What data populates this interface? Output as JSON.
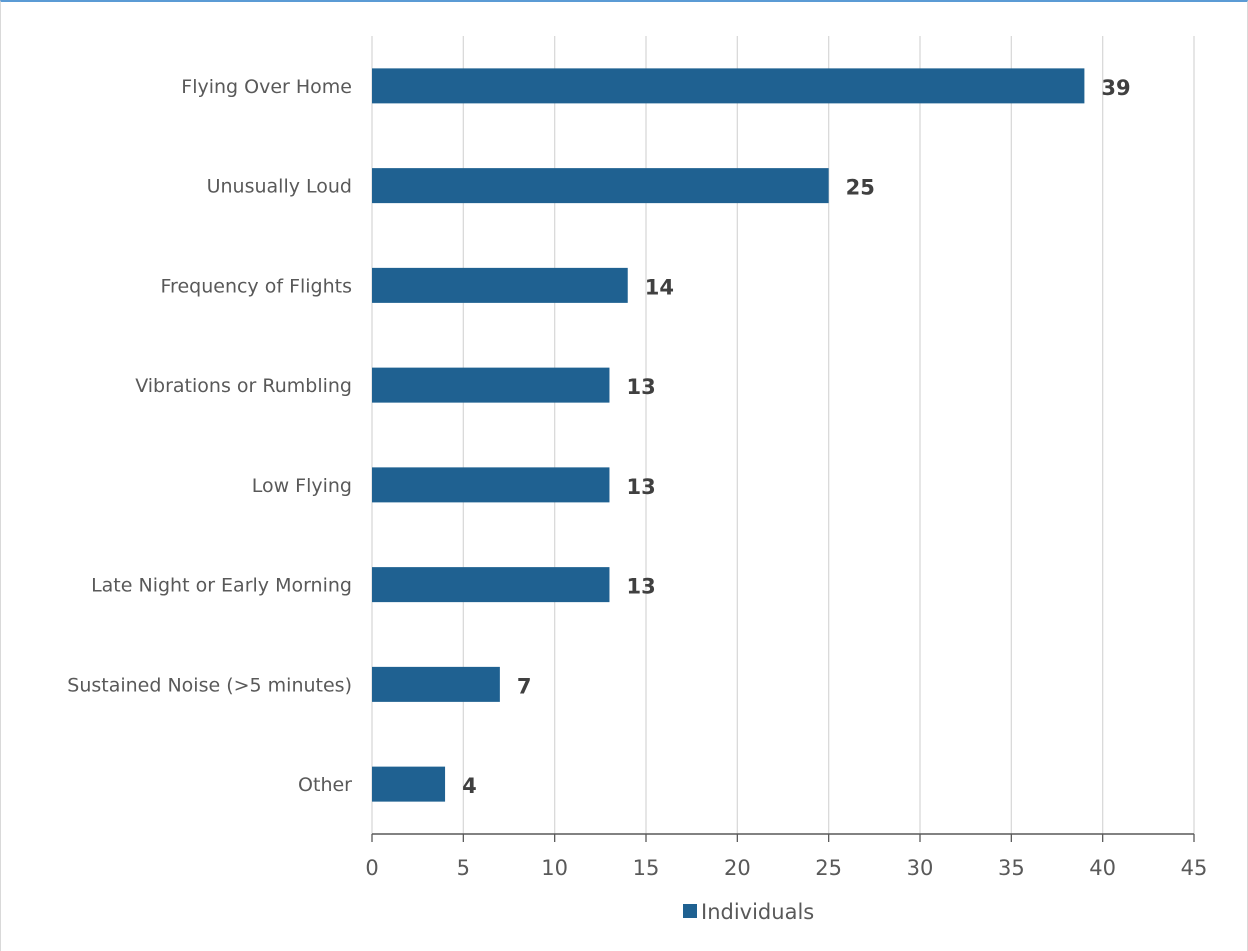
{
  "chart_data": {
    "type": "bar",
    "orientation": "horizontal",
    "categories": [
      "Flying Over Home",
      "Unusually Loud",
      "Frequency of Flights",
      "Vibrations or Rumbling",
      "Low Flying",
      "Late Night or Early Morning",
      "Sustained Noise (>5 minutes)",
      "Other"
    ],
    "series": [
      {
        "name": "Individuals",
        "values": [
          39,
          25,
          14,
          13,
          13,
          13,
          7,
          4
        ],
        "color": "#1f6191"
      }
    ],
    "xlim": [
      0,
      45
    ],
    "xticks": [
      0,
      5,
      10,
      15,
      20,
      25,
      30,
      35,
      40,
      45
    ],
    "grid": true,
    "grid_color": "#d9d9d9",
    "legend_position": "bottom",
    "title": "",
    "xlabel": "",
    "ylabel": ""
  }
}
